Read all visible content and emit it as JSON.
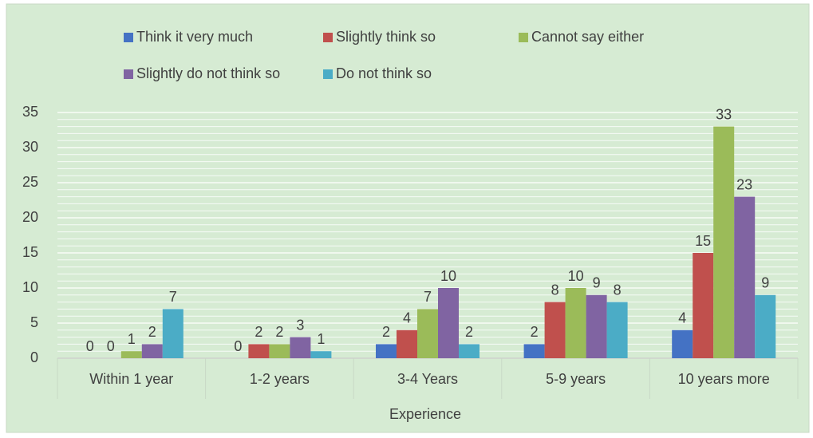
{
  "chart_data": {
    "type": "bar",
    "x_label": "Experience",
    "categories": [
      "Within 1 year",
      "1-2 years",
      "3-4 Years",
      "5-9 years",
      "10 years more"
    ],
    "series": [
      {
        "name": "Think it very much",
        "color": "#4472c4",
        "values": [
          0,
          0,
          2,
          2,
          4
        ]
      },
      {
        "name": "Slightly think so",
        "color": "#c0504d",
        "values": [
          0,
          2,
          4,
          8,
          15
        ]
      },
      {
        "name": "Cannot say either",
        "color": "#9bbb59",
        "values": [
          1,
          2,
          7,
          10,
          33
        ]
      },
      {
        "name": "Slightly do not think so",
        "color": "#8064a2",
        "values": [
          2,
          3,
          10,
          9,
          23
        ]
      },
      {
        "name": "Do not think so",
        "color": "#4bacc6",
        "values": [
          7,
          1,
          2,
          8,
          9
        ]
      }
    ],
    "ylim": [
      0,
      35
    ],
    "yticks": [
      0,
      5,
      10,
      15,
      20,
      25,
      30,
      35
    ],
    "grid": true,
    "legend": "top"
  }
}
